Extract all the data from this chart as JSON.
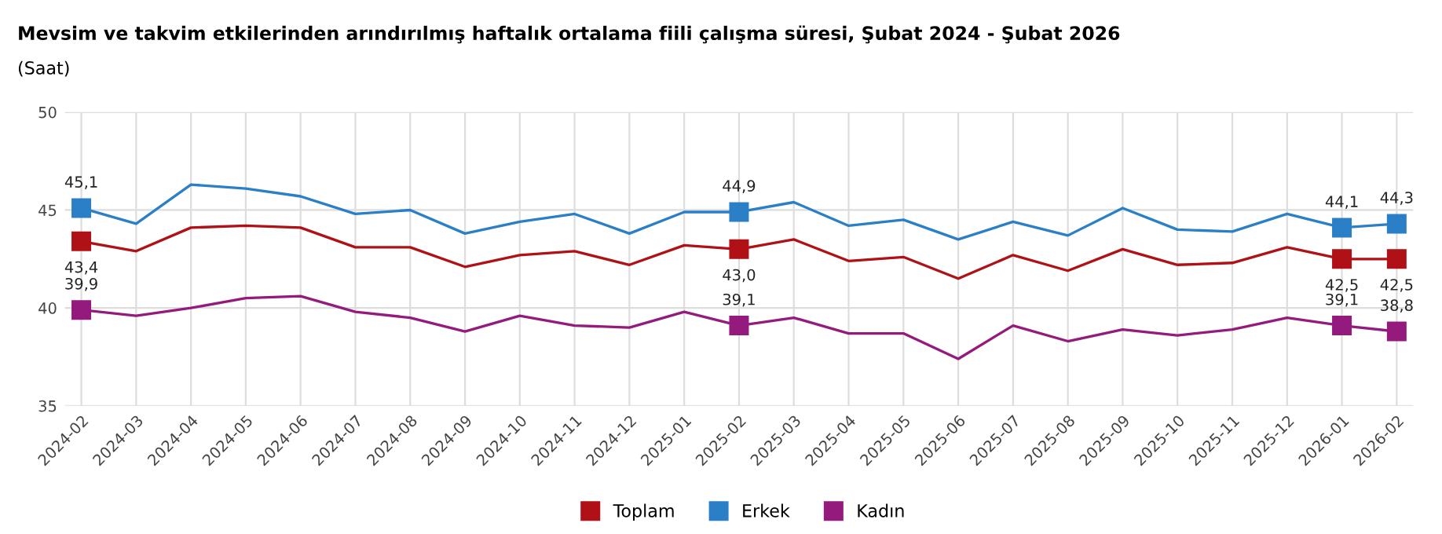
{
  "chart_data": {
    "type": "line",
    "title": "Mevsim ve takvim etkilerinden arındırılmış haftalık ortalama fiili çalışma süresi, Şubat 2024 - Şubat 2026",
    "subtitle": "(Saat)",
    "categories": [
      "2024-02",
      "2024-03",
      "2024-04",
      "2024-05",
      "2024-06",
      "2024-07",
      "2024-08",
      "2024-09",
      "2024-10",
      "2024-11",
      "2024-12",
      "2025-01",
      "2025-02",
      "2025-03",
      "2025-04",
      "2025-05",
      "2025-06",
      "2025-07",
      "2025-08",
      "2025-09",
      "2025-10",
      "2025-11",
      "2025-12",
      "2026-01",
      "2026-02"
    ],
    "series": [
      {
        "name": "Toplam",
        "color": "#b01116",
        "values": [
          43.4,
          42.9,
          44.1,
          44.2,
          44.1,
          43.1,
          43.1,
          42.1,
          42.7,
          42.9,
          42.2,
          43.2,
          43.0,
          43.5,
          42.4,
          42.6,
          41.5,
          42.7,
          41.9,
          43.0,
          42.2,
          42.3,
          43.1,
          42.5,
          42.5
        ],
        "value_labels": [
          "43,4",
          null,
          null,
          null,
          null,
          null,
          null,
          null,
          null,
          null,
          null,
          null,
          "43,0",
          null,
          null,
          null,
          null,
          null,
          null,
          null,
          null,
          null,
          null,
          "42,5",
          "42,5"
        ]
      },
      {
        "name": "Erkek",
        "color": "#2a7fc6",
        "values": [
          45.1,
          44.3,
          46.3,
          46.1,
          45.7,
          44.8,
          45.0,
          43.8,
          44.4,
          44.8,
          43.8,
          44.9,
          44.9,
          45.4,
          44.2,
          44.5,
          43.5,
          44.4,
          43.7,
          45.1,
          44.0,
          43.9,
          44.8,
          44.1,
          44.3
        ],
        "value_labels": [
          "45,1",
          null,
          null,
          null,
          null,
          null,
          null,
          null,
          null,
          null,
          null,
          null,
          "44,9",
          null,
          null,
          null,
          null,
          null,
          null,
          null,
          null,
          null,
          null,
          "44,1",
          "44,3"
        ]
      },
      {
        "name": "Kadın",
        "color": "#951a7e",
        "values": [
          39.9,
          39.6,
          40.0,
          40.5,
          40.6,
          39.8,
          39.5,
          38.8,
          39.6,
          39.1,
          39.0,
          39.8,
          39.1,
          39.5,
          38.7,
          38.7,
          37.4,
          39.1,
          38.3,
          38.9,
          38.6,
          38.9,
          39.5,
          39.1,
          38.8
        ],
        "value_labels": [
          "39,9",
          null,
          null,
          null,
          null,
          null,
          null,
          null,
          null,
          null,
          null,
          null,
          "39,1",
          null,
          null,
          null,
          null,
          null,
          null,
          null,
          null,
          null,
          null,
          "39,1",
          "38,8"
        ]
      }
    ],
    "ylim": [
      35,
      50
    ],
    "yticks": [
      35,
      40,
      45,
      50
    ],
    "grid": true,
    "legend": "bottom",
    "marker": "none"
  }
}
